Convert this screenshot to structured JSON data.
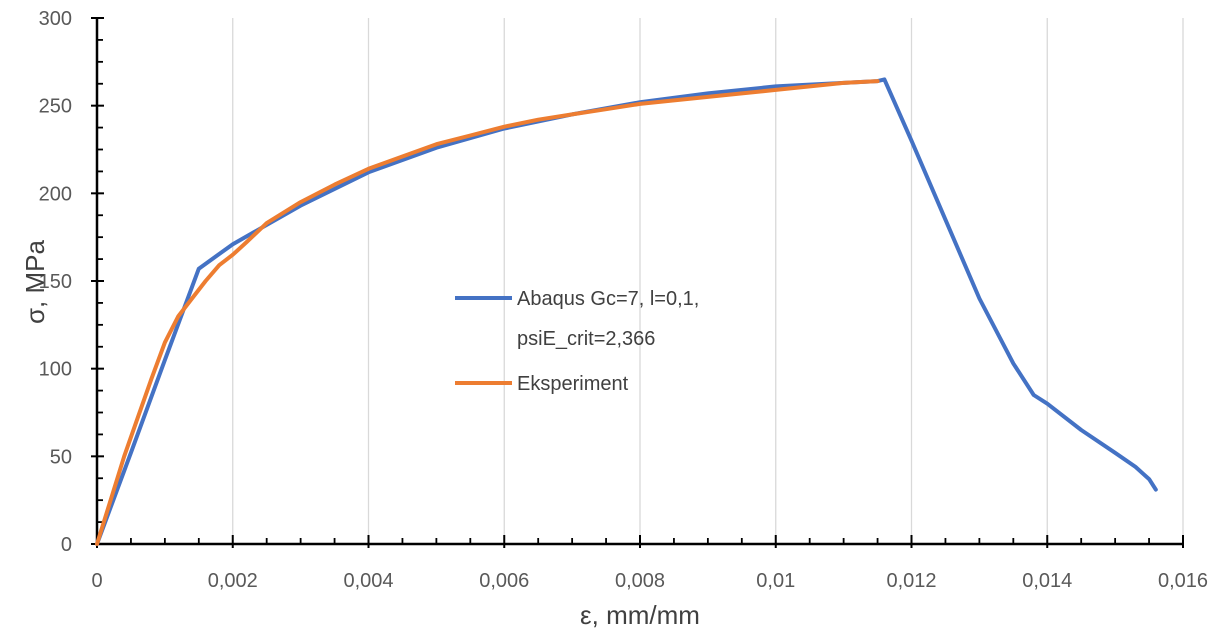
{
  "chart_data": {
    "type": "line",
    "xlabel": "ε, mm/mm",
    "ylabel": "σ, MPa",
    "xlim": [
      0,
      0.016
    ],
    "ylim": [
      0,
      300
    ],
    "x_ticks": [
      0,
      0.002,
      0.004,
      0.006,
      0.008,
      0.01,
      0.012,
      0.014,
      0.016
    ],
    "x_tick_labels": [
      "0",
      "0,002",
      "0,004",
      "0,006",
      "0,008",
      "0,01",
      "0,012",
      "0,014",
      "0,016"
    ],
    "y_ticks": [
      0,
      50,
      100,
      150,
      200,
      250,
      300
    ],
    "y_tick_labels": [
      "0",
      "50",
      "100",
      "150",
      "200",
      "250",
      "300"
    ],
    "grid": "vertical",
    "legend_position": "center",
    "series": [
      {
        "name": "Abaqus Gc=7, l=0,1, psiE_crit=2,366",
        "color": "#4472C4",
        "x": [
          0,
          0.0005,
          0.001,
          0.0015,
          0.002,
          0.003,
          0.004,
          0.005,
          0.006,
          0.007,
          0.008,
          0.009,
          0.01,
          0.011,
          0.0115,
          0.0116,
          0.012,
          0.0125,
          0.013,
          0.0135,
          0.0138,
          0.014,
          0.0145,
          0.015,
          0.0153,
          0.0155,
          0.0156
        ],
        "y": [
          0,
          52,
          105,
          157,
          171,
          193,
          212,
          226,
          237,
          245,
          252,
          257,
          261,
          263,
          264,
          265,
          230,
          185,
          140,
          103,
          85,
          80,
          65,
          52,
          44,
          37,
          31
        ]
      },
      {
        "name": "Eksperiment",
        "color": "#ED7D31",
        "x": [
          0,
          0.0002,
          0.0004,
          0.0006,
          0.0008,
          0.001,
          0.0012,
          0.0014,
          0.0016,
          0.0018,
          0.002,
          0.0022,
          0.0025,
          0.003,
          0.0035,
          0.004,
          0.0045,
          0.005,
          0.0055,
          0.006,
          0.0065,
          0.007,
          0.0075,
          0.008,
          0.0085,
          0.009,
          0.0095,
          0.01,
          0.0105,
          0.011,
          0.0115
        ],
        "y": [
          0,
          25,
          50,
          72,
          94,
          115,
          130,
          140,
          150,
          159,
          165,
          172,
          183,
          195,
          205,
          214,
          221,
          228,
          233,
          238,
          242,
          245,
          248,
          251,
          253,
          255,
          257,
          259,
          261,
          263,
          264
        ]
      }
    ]
  }
}
